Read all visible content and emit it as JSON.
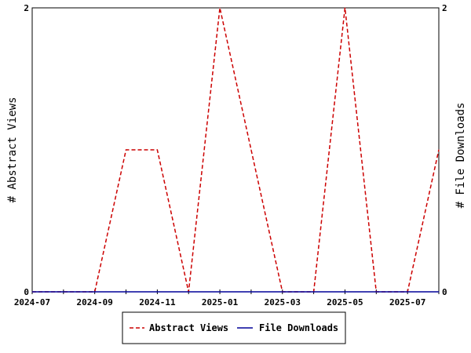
{
  "chart_data": {
    "type": "line",
    "x": [
      "2024-07",
      "2024-08",
      "2024-09",
      "2024-10",
      "2024-11",
      "2024-12",
      "2025-01",
      "2025-02",
      "2025-03",
      "2025-04",
      "2025-05",
      "2025-06",
      "2025-07",
      "2025-08"
    ],
    "x_tick_labels": [
      "2024-07",
      "2024-09",
      "2024-11",
      "2025-01",
      "2025-03",
      "2025-05",
      "2025-07"
    ],
    "series": [
      {
        "name": "Abstract Views",
        "axis": "left",
        "color": "#cc0000",
        "style": "dashed",
        "values": [
          0,
          0,
          0,
          1,
          1,
          0,
          2,
          1,
          0,
          0,
          2,
          0,
          0,
          1
        ]
      },
      {
        "name": "File Downloads",
        "axis": "right",
        "color": "#000099",
        "style": "solid",
        "values": [
          0,
          0,
          0,
          0,
          0,
          0,
          0,
          0,
          0,
          0,
          0,
          0,
          0,
          0
        ]
      }
    ],
    "ylabel_left": "# Abstract Views",
    "ylabel_right": "# File Downloads",
    "ylim_left": [
      0,
      2
    ],
    "ylim_right": [
      0,
      2
    ],
    "y_tick_labels_left": [
      "0",
      "2"
    ],
    "y_tick_labels_right": [
      "0",
      "2"
    ],
    "legend_position": "bottom",
    "grid": false
  }
}
